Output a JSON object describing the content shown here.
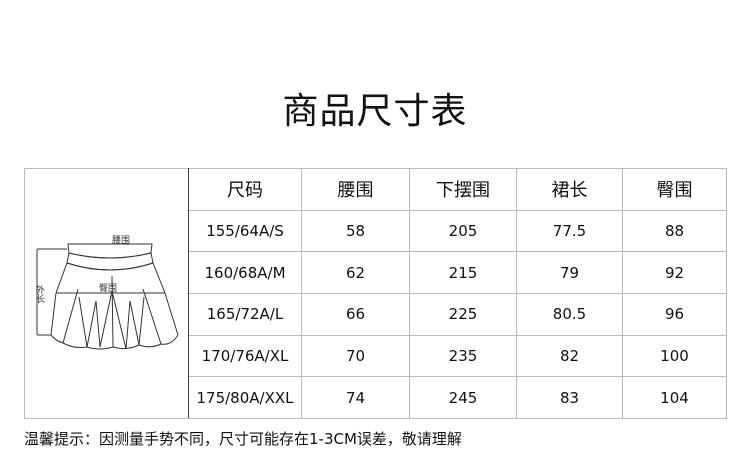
{
  "title": "商品尺寸表",
  "diagram": {
    "waist_label": "腰围",
    "hip_label": "臀围",
    "length_label": "外长"
  },
  "headers": [
    "尺码",
    "腰围",
    "下摆围",
    "裙长",
    "臀围"
  ],
  "rows": [
    [
      "155/64A/S",
      "58",
      "205",
      "77.5",
      "88"
    ],
    [
      "160/68A/M",
      "62",
      "215",
      "79",
      "92"
    ],
    [
      "165/72A/L",
      "66",
      "225",
      "80.5",
      "96"
    ],
    [
      "170/76A/XL",
      "70",
      "235",
      "82",
      "100"
    ],
    [
      "175/80A/XXL",
      "74",
      "245",
      "83",
      "104"
    ]
  ],
  "note": "温馨提示：因测量手势不同，尺寸可能存在1-3CM误差，敬请理解"
}
